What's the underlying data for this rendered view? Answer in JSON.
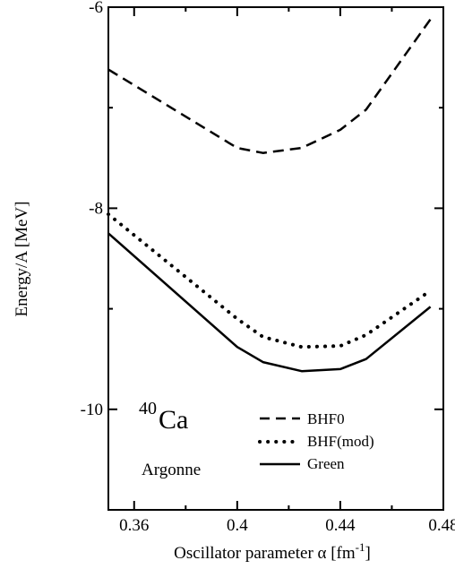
{
  "chart_data": {
    "type": "line",
    "xlabel_main": "Oscillator parameter α [fm",
    "xlabel_sup": "-1",
    "xlabel_end": "]",
    "ylabel": "Energy/A [MeV]",
    "xlim": [
      0.35,
      0.48
    ],
    "ylim": [
      -11.0,
      -6.0
    ],
    "x_ticks": [
      {
        "value": 0.36,
        "label": "0.36"
      },
      {
        "value": 0.4,
        "label": "0.4"
      },
      {
        "value": 0.44,
        "label": "0.44"
      },
      {
        "value": 0.48,
        "label": "0.48"
      }
    ],
    "x_minor_ticks": [
      0.38,
      0.42,
      0.46
    ],
    "y_ticks": [
      {
        "value": -6,
        "label": "-6"
      },
      {
        "value": -8,
        "label": "-8"
      },
      {
        "value": -10,
        "label": "-10"
      }
    ],
    "y_minor_ticks": [
      -7,
      -9,
      -11
    ],
    "grid": false,
    "legend_position": "bottom-right",
    "series": [
      {
        "name": "BHF0",
        "style": "dashed",
        "color": "#000000",
        "points": [
          [
            0.35,
            -6.62
          ],
          [
            0.4,
            -7.4
          ],
          [
            0.41,
            -7.45
          ],
          [
            0.425,
            -7.4
          ],
          [
            0.44,
            -7.22
          ],
          [
            0.45,
            -7.02
          ],
          [
            0.475,
            -6.12
          ]
        ]
      },
      {
        "name": "BHF(mod)",
        "style": "dotted",
        "color": "#000000",
        "points": [
          [
            0.35,
            -8.06
          ],
          [
            0.4,
            -9.1
          ],
          [
            0.41,
            -9.28
          ],
          [
            0.425,
            -9.38
          ],
          [
            0.44,
            -9.37
          ],
          [
            0.45,
            -9.26
          ],
          [
            0.475,
            -8.82
          ]
        ]
      },
      {
        "name": "Green",
        "style": "solid",
        "color": "#000000",
        "points": [
          [
            0.35,
            -8.25
          ],
          [
            0.4,
            -9.38
          ],
          [
            0.41,
            -9.53
          ],
          [
            0.425,
            -9.62
          ],
          [
            0.44,
            -9.6
          ],
          [
            0.45,
            -9.5
          ],
          [
            0.475,
            -8.98
          ]
        ]
      }
    ],
    "annotations": {
      "nucleus_mass": "40",
      "nucleus_symbol": "Ca",
      "potential": "Argonne"
    }
  }
}
